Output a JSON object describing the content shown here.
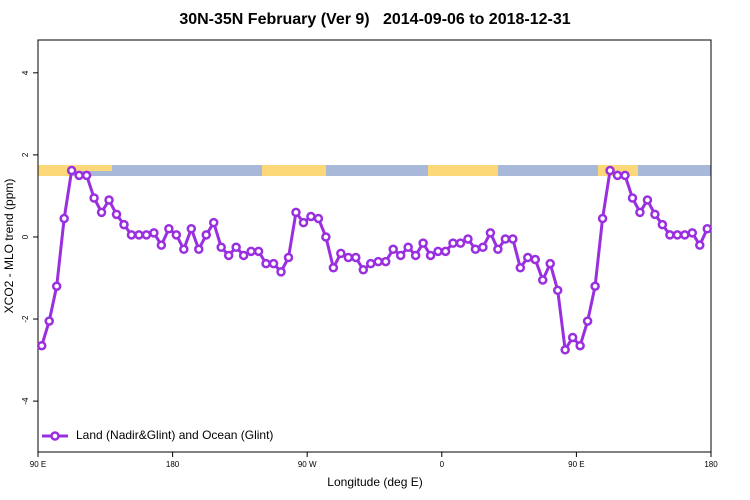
{
  "chart_data": {
    "type": "line",
    "title": "30N-35N February (Ver 9)   2014-09-06 to 2018-12-31",
    "x_label": "Longitude (deg E)",
    "y_label": "XCO2 - MLO trend (ppm)",
    "x": [
      92.5,
      97.5,
      102.5,
      107.5,
      112.5,
      117.5,
      122.5,
      127.5,
      132.5,
      137.5,
      142.5,
      147.5,
      152.5,
      157.5,
      162.5,
      167.5,
      172.5,
      177.5,
      182.5,
      187.5,
      192.5,
      197.5,
      202.5,
      207.5,
      212.5,
      217.5,
      222.5,
      227.5,
      232.5,
      237.5,
      242.5,
      247.5,
      252.5,
      257.5,
      262.5,
      267.5,
      272.5,
      277.5,
      282.5,
      287.5,
      292.5,
      297.5,
      302.5,
      307.5,
      312.5,
      317.5,
      322.5,
      327.5,
      332.5,
      337.5,
      342.5,
      347.5,
      352.5,
      357.5,
      362.5,
      367.5,
      372.5,
      377.5,
      382.5,
      387.5,
      392.5,
      397.5,
      402.5,
      407.5,
      412.5,
      417.5,
      422.5,
      427.5,
      432.5,
      437.5,
      442.5,
      447.5,
      452.5,
      457.5,
      462.5,
      467.5,
      472.5,
      477.5,
      482.5,
      487.5,
      492.5,
      497.5,
      502.5,
      507.5,
      512.5,
      517.5,
      522.5,
      527.5,
      532.5,
      537.5
    ],
    "series": [
      {
        "name": "Land (Nadir&Glint) and Ocean (Glint)",
        "color": "#9a2fe0",
        "values": [
          -2.65,
          -2.05,
          -1.2,
          0.45,
          1.62,
          1.5,
          1.5,
          0.95,
          0.6,
          0.9,
          0.55,
          0.3,
          0.05,
          0.05,
          0.05,
          0.1,
          -0.2,
          0.2,
          0.05,
          -0.3,
          0.2,
          -0.3,
          0.05,
          0.35,
          -0.25,
          -0.45,
          -0.25,
          -0.45,
          -0.35,
          -0.35,
          -0.65,
          -0.65,
          -0.85,
          -0.5,
          0.6,
          0.35,
          0.5,
          0.45,
          0,
          -0.75,
          -0.4,
          -0.5,
          -0.5,
          -0.8,
          -0.65,
          -0.6,
          -0.6,
          -0.3,
          -0.45,
          -0.25,
          -0.45,
          -0.15,
          -0.45,
          -0.35,
          -0.35,
          -0.15,
          -0.15,
          -0.05,
          -0.3,
          -0.25,
          0.1,
          -0.3,
          -0.05,
          -0.05,
          -0.75,
          -0.5,
          -0.55,
          -1.05,
          -0.65,
          -1.3,
          -2.75,
          -2.45,
          -2.65,
          -2.05,
          -1.2,
          0.45,
          1.62,
          1.5,
          1.5,
          0.95,
          0.6,
          0.9,
          0.55,
          0.3,
          0.05,
          0.05,
          0.05,
          0.1,
          -0.2,
          0.2
        ]
      }
    ],
    "xlim": [
      90,
      540
    ],
    "xticks": [
      {
        "value": 90,
        "label": "90 E"
      },
      180,
      {
        "value": 270,
        "label": "90 W"
      },
      {
        "value": 360,
        "label": "0"
      },
      {
        "value": 450,
        "label": "90 E"
      },
      {
        "value": 540,
        "label": "180"
      }
    ],
    "ylim": [
      -5.24,
      4.8
    ],
    "yticks": [
      4,
      2,
      0,
      -2,
      -4
    ],
    "legend_position": "bottom left"
  }
}
